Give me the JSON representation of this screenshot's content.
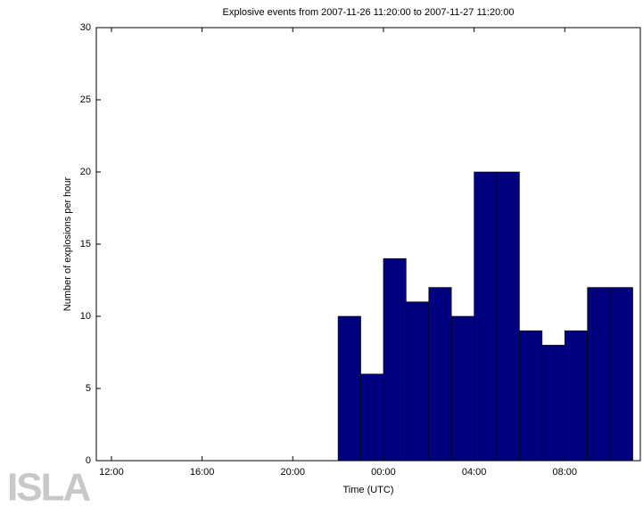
{
  "chart_data": {
    "type": "histogram",
    "title": "Explosive events from 2007-11-26 11:20:00 to 2007-11-27 11:20:00",
    "xlabel": "Time (UTC)",
    "ylabel": "Number of explosions per hour",
    "bins": [
      22,
      23,
      24,
      25,
      26,
      27,
      28,
      29,
      30,
      31,
      32,
      33,
      34,
      35
    ],
    "values": [
      10,
      6,
      14,
      11,
      12,
      10,
      20,
      20,
      9,
      8,
      9,
      12,
      12
    ],
    "color": "#00007f",
    "xlim": [
      11.333,
      35.333
    ],
    "xticks": [
      {
        "value": 12,
        "label": "12:00"
      },
      {
        "value": 16,
        "label": "16:00"
      },
      {
        "value": 20,
        "label": "20:00"
      },
      {
        "value": 24,
        "label": "00:00"
      },
      {
        "value": 28,
        "label": "04:00"
      },
      {
        "value": 32,
        "label": "08:00"
      }
    ],
    "ylim": [
      0,
      30
    ],
    "yticks": [
      0,
      5,
      10,
      15,
      20,
      25,
      30
    ]
  },
  "logo": "ISLA"
}
